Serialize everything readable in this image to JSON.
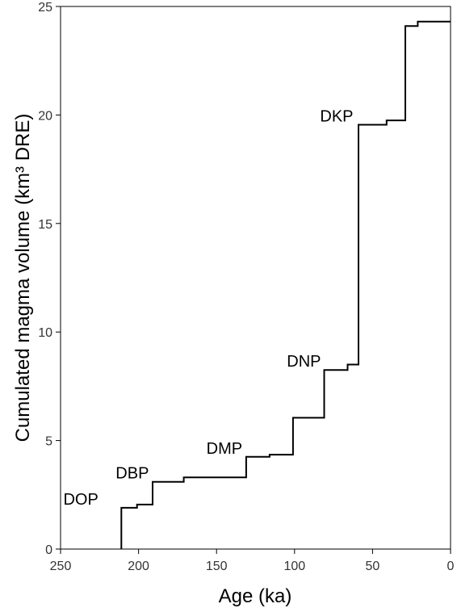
{
  "chart_data": {
    "type": "line",
    "title": "",
    "xlabel": "Age (ka)",
    "ylabel": "Cumulated magma volume (km³ DRE)",
    "xlim": [
      250,
      0
    ],
    "ylim": [
      0,
      25
    ],
    "x_reversed": true,
    "grid": false,
    "legend": "none",
    "x_ticks": [
      "250",
      "200",
      "150",
      "100",
      "50",
      "0"
    ],
    "y_ticks": [
      "0",
      "5",
      "10",
      "15",
      "20",
      "25"
    ],
    "line_color": "#000000",
    "series": [
      {
        "step": true,
        "points": [
          {
            "x": 211,
            "y": 0
          },
          {
            "x": 211,
            "y": 1.9
          },
          {
            "x": 201,
            "y": 1.9
          },
          {
            "x": 201,
            "y": 2.05
          },
          {
            "x": 191,
            "y": 2.05
          },
          {
            "x": 191,
            "y": 3.1
          },
          {
            "x": 171,
            "y": 3.1
          },
          {
            "x": 171,
            "y": 3.3
          },
          {
            "x": 131,
            "y": 3.3
          },
          {
            "x": 131,
            "y": 4.25
          },
          {
            "x": 116,
            "y": 4.25
          },
          {
            "x": 116,
            "y": 4.35
          },
          {
            "x": 101,
            "y": 4.35
          },
          {
            "x": 101,
            "y": 6.05
          },
          {
            "x": 81,
            "y": 6.05
          },
          {
            "x": 81,
            "y": 8.25
          },
          {
            "x": 66,
            "y": 8.25
          },
          {
            "x": 66,
            "y": 8.5
          },
          {
            "x": 59,
            "y": 8.5
          },
          {
            "x": 59,
            "y": 19.55
          },
          {
            "x": 41,
            "y": 19.55
          },
          {
            "x": 41,
            "y": 19.75
          },
          {
            "x": 29,
            "y": 19.75
          },
          {
            "x": 29,
            "y": 24.1
          },
          {
            "x": 21,
            "y": 24.1
          },
          {
            "x": 21,
            "y": 24.3
          },
          {
            "x": 0,
            "y": 24.3
          }
        ]
      }
    ],
    "annotations": [
      {
        "text": "DOP",
        "x": 237,
        "y": 1.9
      },
      {
        "text": "DBP",
        "x": 204,
        "y": 3.1
      },
      {
        "text": "DMP",
        "x": 145,
        "y": 4.25
      },
      {
        "text": "DNP",
        "x": 94,
        "y": 8.25
      },
      {
        "text": "DKP",
        "x": 73,
        "y": 19.55
      }
    ]
  }
}
